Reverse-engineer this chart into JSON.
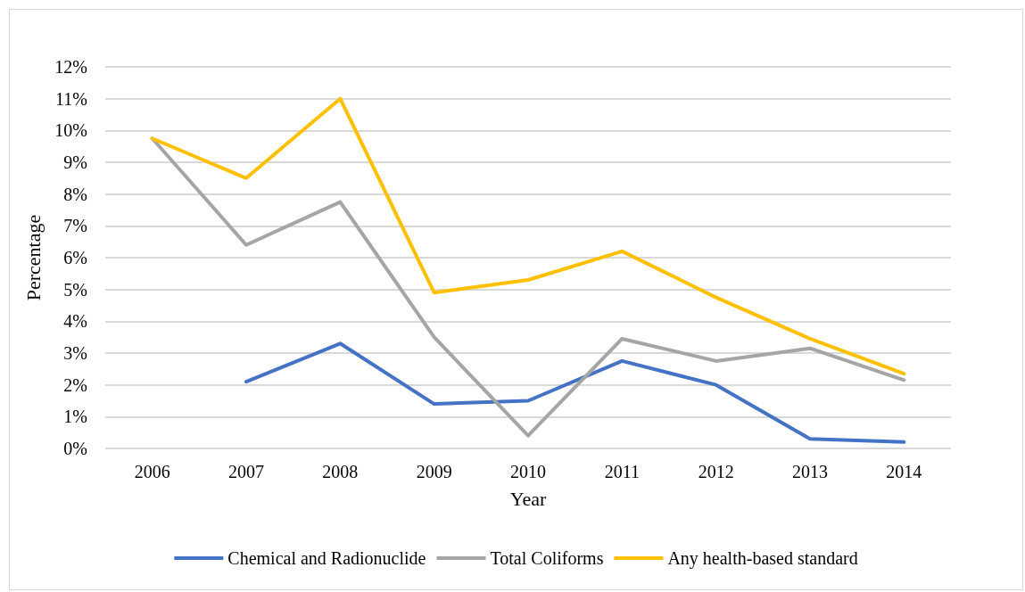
{
  "chart_data": {
    "type": "line",
    "xlabel": "Year",
    "ylabel": "Percentage",
    "categories": [
      "2006",
      "2007",
      "2008",
      "2009",
      "2010",
      "2011",
      "2012",
      "2013",
      "2014"
    ],
    "series": [
      {
        "name": "Chemical and Radionuclide",
        "color": "#4472c4",
        "values": [
          null,
          2.1,
          3.3,
          1.4,
          1.5,
          2.75,
          2.0,
          0.3,
          0.2
        ]
      },
      {
        "name": "Total Coliforms",
        "color": "#a5a5a5",
        "values": [
          9.75,
          6.4,
          7.75,
          3.5,
          0.4,
          3.45,
          2.75,
          3.15,
          2.15
        ]
      },
      {
        "name": "Any health-based standard",
        "color": "#ffc000",
        "values": [
          9.75,
          8.5,
          11.0,
          4.9,
          5.3,
          6.2,
          4.75,
          3.45,
          2.35
        ]
      }
    ],
    "ylim": [
      0,
      12
    ],
    "yticks": [
      {
        "value": 0,
        "label": "0%"
      },
      {
        "value": 1,
        "label": "1%"
      },
      {
        "value": 2,
        "label": "2%"
      },
      {
        "value": 3,
        "label": "3%"
      },
      {
        "value": 4,
        "label": "4%"
      },
      {
        "value": 5,
        "label": "5%"
      },
      {
        "value": 6,
        "label": "6%"
      },
      {
        "value": 7,
        "label": "7%"
      },
      {
        "value": 8,
        "label": "8%"
      },
      {
        "value": 9,
        "label": "9%"
      },
      {
        "value": 10,
        "label": "10%"
      },
      {
        "value": 11,
        "label": "11%"
      },
      {
        "value": 12,
        "label": "12%"
      }
    ],
    "grid": "y",
    "legend": "bottom",
    "marker": "none",
    "line_style": "solid"
  }
}
